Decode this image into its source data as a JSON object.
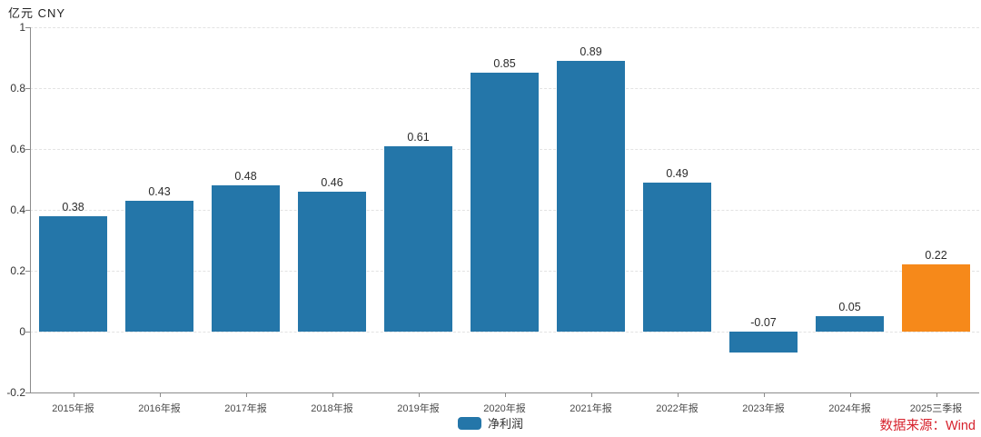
{
  "unit_label": "亿元 CNY",
  "legend": {
    "label": "净利润",
    "swatch_color": "#2476a9"
  },
  "source": {
    "label": "数据来源：Wind",
    "color": "#d7232e"
  },
  "colors": {
    "bar_default": "#2476a9",
    "bar_highlight": "#f6891a",
    "axis_line": "#8c8c8c",
    "gridline": "#e3e3e3"
  },
  "chart_data": {
    "type": "bar",
    "title": "",
    "xlabel": "",
    "ylabel": "亿元 CNY",
    "categories": [
      "2015年报",
      "2016年报",
      "2017年报",
      "2018年报",
      "2019年报",
      "2020年报",
      "2021年报",
      "2022年报",
      "2023年报",
      "2024年报",
      "2025三季报"
    ],
    "series": [
      {
        "name": "净利润",
        "values": [
          0.38,
          0.43,
          0.48,
          0.46,
          0.61,
          0.85,
          0.89,
          0.49,
          -0.07,
          0.05,
          0.22
        ]
      }
    ],
    "highlight_index": 10,
    "ylim": [
      -0.2,
      1
    ],
    "yticks": [
      1,
      0.8,
      0.6,
      0.4,
      0.2,
      0,
      -0.2
    ],
    "grid": true,
    "legend_position": "bottom"
  }
}
